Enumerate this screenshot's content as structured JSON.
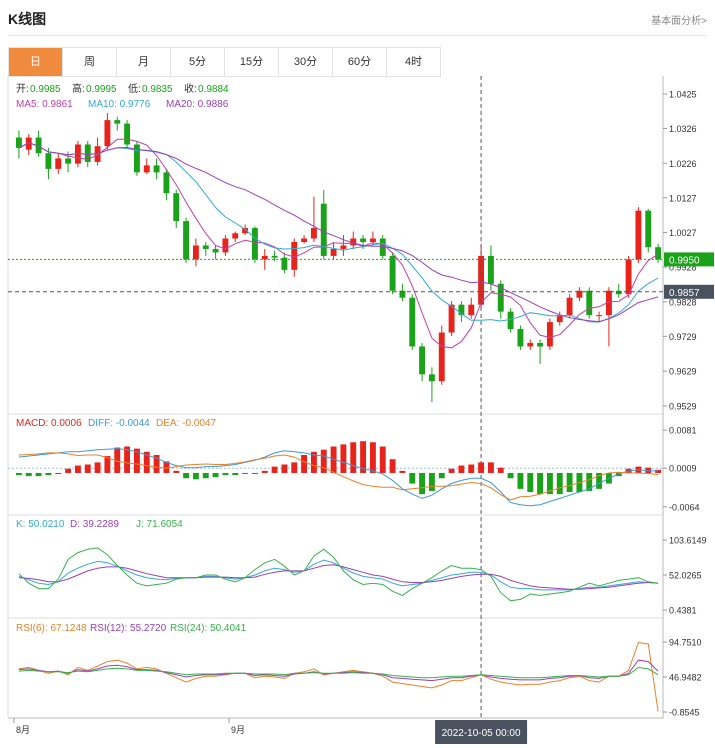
{
  "header": {
    "title": "K线图",
    "link": "基本面分析>"
  },
  "tabs": [
    {
      "label": "日",
      "active": true
    },
    {
      "label": "周",
      "active": false
    },
    {
      "label": "月",
      "active": false
    },
    {
      "label": "5分",
      "active": false
    },
    {
      "label": "15分",
      "active": false
    },
    {
      "label": "30分",
      "active": false
    },
    {
      "label": "60分",
      "active": false
    },
    {
      "label": "4时",
      "active": false
    }
  ],
  "colors": {
    "up": "#e8231b",
    "down": "#1aa31a",
    "ma5": "#c23fa6",
    "ma10": "#34a9d5",
    "ma20": "#9b3fb8",
    "dif": "#3a9ad9",
    "dea": "#e8822a",
    "k": "#34a9d5",
    "d": "#9b3fb8",
    "j": "#36b34a",
    "rsi6": "#e8822a",
    "rsi12": "#9b3fb8",
    "rsi24": "#36b34a"
  },
  "ohlc_legend": {
    "open_label": "开:",
    "open": "0.9985",
    "high_label": "高:",
    "high": "0.9995",
    "low_label": "低:",
    "low": "0.9835",
    "close_label": "收:",
    "close": "0.9884"
  },
  "ma_legend": {
    "ma5": "MA5: 0.9861",
    "ma10": "MA10: 0.9776",
    "ma20": "MA20: 0.9886"
  },
  "macd_legend": {
    "macd": "MACD: 0.0006",
    "diff": "DIFF: -0.0044",
    "dea": "DEA: -0.0047"
  },
  "kdj_legend": {
    "k": "K: 50.0210",
    "d": "D: 39.2289",
    "j": "J: 71.6054"
  },
  "rsi_legend": {
    "rsi6": "RSI(6): 67.1248",
    "rsi12": "RSI(12): 55.2720",
    "rsi24": "RSI(24): 50.4041"
  },
  "price_axis": {
    "ticks": [
      "1.0425",
      "1.0326",
      "1.0226",
      "1.0127",
      "1.0027",
      "0.9928",
      "0.9828",
      "0.9729",
      "0.9629",
      "0.9529"
    ]
  },
  "macd_axis": {
    "ticks": [
      "0.0081",
      "0.0009",
      "-0.0064"
    ]
  },
  "kdj_axis": {
    "ticks": [
      "103.6149",
      "52.0265",
      "0.4381"
    ]
  },
  "rsi_axis": {
    "ticks": [
      "94.7510",
      "46.9482",
      "-0.8545"
    ]
  },
  "last_price": "0.9950",
  "crosshair_price": "0.9857",
  "crosshair_time": "2022-10-05 00:00",
  "x_labels": [
    "8月",
    "9月"
  ],
  "chart_data": {
    "type": "candlestick",
    "price_range": [
      0.9529,
      1.0425
    ],
    "candles": [
      [
        1.03,
        1.027,
        1.032,
        1.024
      ],
      [
        1.0265,
        1.03,
        1.031,
        1.025
      ],
      [
        1.03,
        1.0255,
        1.032,
        1.0245
      ],
      [
        1.0255,
        1.021,
        1.027,
        1.018
      ],
      [
        1.021,
        1.024,
        1.0255,
        1.0195
      ],
      [
        1.024,
        1.0225,
        1.026,
        1.02
      ],
      [
        1.0225,
        1.028,
        1.029,
        1.0215
      ],
      [
        1.028,
        1.023,
        1.029,
        1.0215
      ],
      [
        1.023,
        1.0275,
        1.03,
        1.022
      ],
      [
        1.0275,
        1.035,
        1.037,
        1.0265
      ],
      [
        1.035,
        1.034,
        1.036,
        1.032
      ],
      [
        1.034,
        1.028,
        1.035,
        1.027
      ],
      [
        1.028,
        1.02,
        1.029,
        1.019
      ],
      [
        1.02,
        1.022,
        1.024,
        1.0195
      ],
      [
        1.022,
        1.02,
        1.024,
        1.018
      ],
      [
        1.02,
        1.014,
        1.021,
        1.012
      ],
      [
        1.014,
        1.006,
        1.015,
        1.004
      ],
      [
        1.006,
        0.995,
        1.007,
        0.994
      ],
      [
        0.995,
        0.999,
        1.001,
        0.993
      ],
      [
        0.999,
        0.998,
        1.0,
        0.996
      ],
      [
        0.998,
        0.997,
        0.999,
        0.995
      ],
      [
        0.997,
        1.001,
        1.002,
        0.996
      ],
      [
        1.001,
        1.0025,
        1.003,
        1.0
      ],
      [
        1.0025,
        1.004,
        1.005,
        1.002
      ],
      [
        1.004,
        0.995,
        1.0045,
        0.994
      ],
      [
        0.995,
        0.996,
        0.998,
        0.992
      ],
      [
        0.996,
        0.9955,
        0.9975,
        0.9945
      ],
      [
        0.9955,
        0.992,
        0.997,
        0.991
      ],
      [
        0.992,
        1.0,
        1.001,
        0.99
      ],
      [
        1.0,
        1.001,
        1.002,
        0.9995
      ],
      [
        1.001,
        1.004,
        1.013,
        1.0
      ],
      [
        1.011,
        0.996,
        1.015,
        0.995
      ],
      [
        0.996,
        0.998,
        1.0,
        0.995
      ],
      [
        0.998,
        0.999,
        1.002,
        0.996
      ],
      [
        0.999,
        1.001,
        1.003,
        0.998
      ],
      [
        1.001,
        1.0,
        1.002,
        0.998
      ],
      [
        1.0,
        1.001,
        1.003,
        0.999
      ],
      [
        1.001,
        0.996,
        1.002,
        0.995
      ],
      [
        0.996,
        0.986,
        0.997,
        0.985
      ],
      [
        0.986,
        0.984,
        0.988,
        0.983
      ],
      [
        0.984,
        0.97,
        0.985,
        0.969
      ],
      [
        0.97,
        0.962,
        0.971,
        0.96
      ],
      [
        0.962,
        0.96,
        0.964,
        0.954
      ],
      [
        0.96,
        0.974,
        0.976,
        0.959
      ],
      [
        0.974,
        0.982,
        0.983,
        0.973
      ],
      [
        0.982,
        0.979,
        0.983,
        0.977
      ],
      [
        0.979,
        0.982,
        0.984,
        0.978
      ],
      [
        0.982,
        0.996,
        0.999,
        0.981
      ],
      [
        0.996,
        0.988,
        0.999,
        0.986
      ],
      [
        0.988,
        0.98,
        0.989,
        0.978
      ],
      [
        0.98,
        0.975,
        0.981,
        0.974
      ],
      [
        0.975,
        0.97,
        0.976,
        0.969
      ],
      [
        0.97,
        0.971,
        0.972,
        0.969
      ],
      [
        0.971,
        0.97,
        0.972,
        0.965
      ],
      [
        0.97,
        0.977,
        0.978,
        0.969
      ],
      [
        0.977,
        0.979,
        0.98,
        0.976
      ],
      [
        0.979,
        0.984,
        0.985,
        0.978
      ],
      [
        0.984,
        0.986,
        0.987,
        0.983
      ],
      [
        0.986,
        0.979,
        0.987,
        0.978
      ],
      [
        0.979,
        0.979,
        0.98,
        0.977
      ],
      [
        0.979,
        0.986,
        0.987,
        0.97
      ],
      [
        0.986,
        0.985,
        0.988,
        0.984
      ],
      [
        0.985,
        0.995,
        0.996,
        0.984
      ],
      [
        0.995,
        1.009,
        1.01,
        0.994
      ],
      [
        1.009,
        0.9985,
        1.0095,
        0.997
      ],
      [
        0.9985,
        0.995,
        0.9995,
        0.994
      ]
    ],
    "macd": [
      -0.0004,
      -0.0006,
      -0.0006,
      -0.0004,
      0.0,
      0.0008,
      0.0014,
      0.0016,
      0.002,
      0.0032,
      0.0048,
      0.005,
      0.0046,
      0.004,
      0.0034,
      0.0022,
      0.0004,
      -0.001,
      -0.0012,
      -0.001,
      -0.0008,
      -0.0004,
      -0.0004,
      -0.0002,
      -0.0002,
      0.0004,
      0.0012,
      0.0016,
      0.002,
      0.0034,
      0.004,
      0.0044,
      0.005,
      0.0054,
      0.0058,
      0.006,
      0.0058,
      0.005,
      0.0026,
      0.0004,
      -0.002,
      -0.004,
      -0.0034,
      -0.001,
      0.0008,
      0.0014,
      0.0016,
      0.002,
      0.002,
      0.001,
      -0.001,
      -0.003,
      -0.0036,
      -0.004,
      -0.004,
      -0.004,
      -0.0036,
      -0.0036,
      -0.0034,
      -0.003,
      -0.002,
      -0.0006,
      0.0008,
      0.0012,
      0.001,
      0.0006
    ],
    "dif": [
      0.003,
      0.0032,
      0.0034,
      0.0036,
      0.0038,
      0.004,
      0.004,
      0.0042,
      0.0044,
      0.0045,
      0.0046,
      0.0044,
      0.004,
      0.0034,
      0.0028,
      0.002,
      0.0014,
      0.001,
      0.001,
      0.0012,
      0.0012,
      0.0014,
      0.0016,
      0.002,
      0.0024,
      0.003,
      0.0038,
      0.0042,
      0.004,
      0.0038,
      0.0034,
      0.0032,
      0.0026,
      0.002,
      0.0014,
      0.0008,
      0.0004,
      -0.0002,
      -0.0014,
      -0.003,
      -0.004,
      -0.0048,
      -0.0042,
      -0.003,
      -0.002,
      -0.0014,
      -0.001,
      -0.001,
      -0.0018,
      -0.0036,
      -0.0056,
      -0.006,
      -0.0062,
      -0.006,
      -0.0054,
      -0.0048,
      -0.0042,
      -0.0036,
      -0.003,
      -0.002,
      -0.001,
      -0.0002,
      0.0004,
      0.0006,
      0.0004,
      0.0004
    ],
    "dea": [
      0.0034,
      0.0035,
      0.0036,
      0.0038,
      0.0038,
      0.0036,
      0.0033,
      0.0034,
      0.0034,
      0.0029,
      0.0022,
      0.0019,
      0.0017,
      0.0014,
      0.0011,
      0.0009,
      0.0012,
      0.0015,
      0.0016,
      0.0017,
      0.0016,
      0.0016,
      0.0018,
      0.0021,
      0.0025,
      0.0028,
      0.0032,
      0.0034,
      0.003,
      0.0021,
      0.0014,
      0.001,
      0.0001,
      -0.0007,
      -0.0015,
      -0.0022,
      -0.0025,
      -0.0027,
      -0.0027,
      -0.0032,
      -0.003,
      -0.0028,
      -0.0025,
      -0.0025,
      -0.0024,
      -0.0021,
      -0.0018,
      -0.002,
      -0.0028,
      -0.0041,
      -0.0051,
      -0.0045,
      -0.0044,
      -0.004,
      -0.0034,
      -0.0028,
      -0.0024,
      -0.0018,
      -0.0013,
      -0.0005,
      0.0,
      0.0001,
      0.0,
      0.0,
      -0.0001,
      -0.0003
    ],
    "kdj_range": [
      0.4381,
      103.6149
    ],
    "k": [
      50,
      45,
      40,
      38,
      42,
      55,
      62,
      68,
      72,
      70,
      65,
      58,
      52,
      48,
      46,
      45,
      47,
      48,
      48,
      50,
      50,
      48,
      46,
      48,
      52,
      58,
      62,
      60,
      56,
      58,
      68,
      74,
      70,
      62,
      55,
      50,
      48,
      46,
      40,
      36,
      38,
      40,
      44,
      48,
      52,
      54,
      56,
      56,
      52,
      42,
      34,
      32,
      32,
      30,
      30,
      30,
      30,
      32,
      34,
      34,
      36,
      38,
      40,
      42,
      41,
      40
    ],
    "d": [
      48,
      47,
      45,
      42,
      42,
      46,
      52,
      58,
      62,
      64,
      64,
      62,
      58,
      54,
      51,
      48,
      48,
      48,
      48,
      49,
      49,
      49,
      48,
      48,
      49,
      53,
      56,
      58,
      58,
      58,
      62,
      66,
      67,
      64,
      60,
      56,
      52,
      50,
      46,
      42,
      41,
      41,
      42,
      44,
      47,
      50,
      52,
      53,
      53,
      50,
      44,
      40,
      36,
      34,
      33,
      32,
      31,
      31,
      32,
      33,
      34,
      36,
      38,
      40,
      41,
      40
    ],
    "j": [
      54,
      40,
      32,
      32,
      46,
      75,
      85,
      90,
      92,
      82,
      66,
      52,
      40,
      36,
      38,
      40,
      46,
      48,
      48,
      52,
      52,
      46,
      42,
      48,
      60,
      70,
      75,
      65,
      52,
      58,
      80,
      90,
      78,
      58,
      45,
      38,
      40,
      38,
      28,
      22,
      32,
      40,
      48,
      58,
      66,
      62,
      62,
      60,
      50,
      26,
      14,
      16,
      24,
      22,
      24,
      26,
      28,
      34,
      40,
      36,
      40,
      44,
      46,
      48,
      42,
      40
    ],
    "rsi_range": [
      -0.8545,
      94.751
    ],
    "rsi6": [
      58,
      60,
      56,
      52,
      55,
      50,
      60,
      56,
      62,
      68,
      70,
      66,
      58,
      60,
      58,
      52,
      46,
      40,
      45,
      48,
      48,
      50,
      52,
      52,
      46,
      48,
      47,
      45,
      52,
      54,
      58,
      50,
      52,
      54,
      56,
      54,
      52,
      48,
      40,
      38,
      36,
      34,
      32,
      36,
      42,
      42,
      46,
      50,
      44,
      40,
      38,
      36,
      37,
      37,
      40,
      42,
      46,
      48,
      42,
      40,
      48,
      48,
      56,
      94,
      92,
      0
    ],
    "rsi12": [
      57,
      58,
      56,
      54,
      55,
      52,
      57,
      55,
      58,
      62,
      63,
      61,
      57,
      57,
      56,
      53,
      50,
      47,
      49,
      50,
      50,
      51,
      52,
      52,
      49,
      50,
      49,
      48,
      51,
      52,
      54,
      51,
      52,
      53,
      54,
      53,
      52,
      50,
      46,
      45,
      44,
      43,
      42,
      44,
      46,
      46,
      48,
      50,
      47,
      45,
      44,
      43,
      43,
      43,
      45,
      46,
      48,
      49,
      46,
      45,
      48,
      48,
      52,
      70,
      68,
      55
    ],
    "rsi24": [
      55,
      56,
      55,
      54,
      54,
      53,
      55,
      54,
      56,
      58,
      59,
      58,
      56,
      56,
      55,
      54,
      52,
      50,
      51,
      51,
      51,
      52,
      52,
      52,
      51,
      51,
      51,
      50,
      52,
      52,
      53,
      52,
      52,
      52,
      53,
      52,
      52,
      51,
      49,
      48,
      47,
      46,
      46,
      47,
      48,
      48,
      49,
      50,
      49,
      48,
      47,
      46,
      46,
      46,
      47,
      48,
      49,
      49,
      48,
      47,
      48,
      48,
      50,
      60,
      58,
      50
    ]
  }
}
